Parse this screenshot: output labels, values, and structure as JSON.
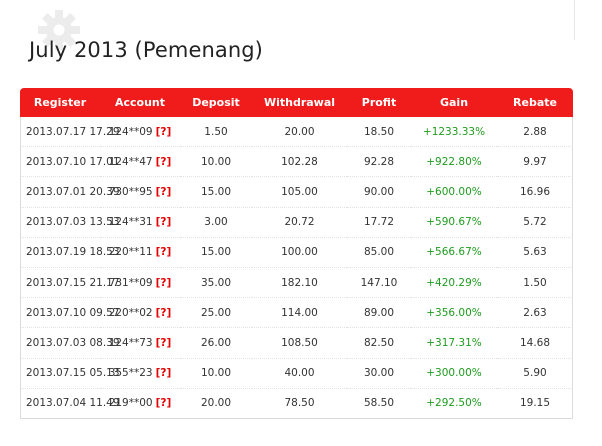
{
  "title": "July 2013 (Pemenang)",
  "icons": {
    "gear": "gear-icon"
  },
  "table": {
    "headers": [
      "Register",
      "Account",
      "Deposit",
      "Withdrawal",
      "Profit",
      "Gain",
      "Rebate"
    ],
    "help_marker": "[?]",
    "rows": [
      {
        "register": "2013.07.17 17.29",
        "account": "124**09",
        "deposit": "1.50",
        "withdrawal": "20.00",
        "profit": "18.50",
        "gain": "+1233.33%",
        "rebate": "2.88"
      },
      {
        "register": "2013.07.10 17.01",
        "account": "124**47",
        "deposit": "10.00",
        "withdrawal": "102.28",
        "profit": "92.28",
        "gain": "+922.80%",
        "rebate": "9.97"
      },
      {
        "register": "2013.07.01 20.39",
        "account": "730**95",
        "deposit": "15.00",
        "withdrawal": "105.00",
        "profit": "90.00",
        "gain": "+600.00%",
        "rebate": "16.96"
      },
      {
        "register": "2013.07.03 13.53",
        "account": "124**31",
        "deposit": "3.00",
        "withdrawal": "20.72",
        "profit": "17.72",
        "gain": "+590.67%",
        "rebate": "5.72"
      },
      {
        "register": "2013.07.19 18.53",
        "account": "220**11",
        "deposit": "15.00",
        "withdrawal": "100.00",
        "profit": "85.00",
        "gain": "+566.67%",
        "rebate": "5.63"
      },
      {
        "register": "2013.07.15 21.17",
        "account": "731**09",
        "deposit": "35.00",
        "withdrawal": "182.10",
        "profit": "147.10",
        "gain": "+420.29%",
        "rebate": "1.50"
      },
      {
        "register": "2013.07.10 09.57",
        "account": "220**02",
        "deposit": "25.00",
        "withdrawal": "114.00",
        "profit": "89.00",
        "gain": "+356.00%",
        "rebate": "2.63"
      },
      {
        "register": "2013.07.03 08.39",
        "account": "124**73",
        "deposit": "26.00",
        "withdrawal": "108.50",
        "profit": "82.50",
        "gain": "+317.31%",
        "rebate": "14.68"
      },
      {
        "register": "2013.07.15 05.13",
        "account": "355**23",
        "deposit": "10.00",
        "withdrawal": "40.00",
        "profit": "30.00",
        "gain": "+300.00%",
        "rebate": "5.90"
      },
      {
        "register": "2013.07.04 11.49",
        "account": "219**00",
        "deposit": "20.00",
        "withdrawal": "78.50",
        "profit": "58.50",
        "gain": "+292.50%",
        "rebate": "19.15"
      }
    ]
  },
  "colors": {
    "header_bg": "#f01c1c",
    "gain_text": "#1e9c1e",
    "help_marker": "#e60000"
  }
}
